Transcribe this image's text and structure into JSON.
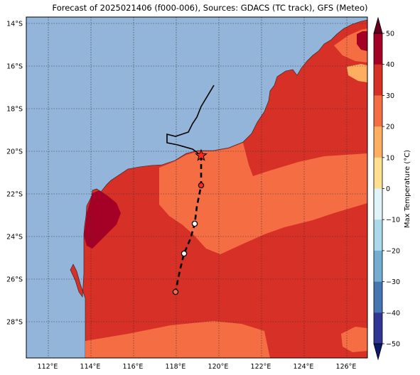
{
  "title": "Forecast of 2025021406 (f000-006), Sources: GDACS (TC track), GFS (Meteo)",
  "map": {
    "lon_range": [
      111,
      127
    ],
    "lat_range": [
      -29.7,
      -13.7
    ],
    "lon_ticks": [
      "112°E",
      "114°E",
      "116°E",
      "118°E",
      "120°E",
      "122°E",
      "124°E",
      "126°E"
    ],
    "lat_ticks": [
      "14°S",
      "16°S",
      "18°S",
      "20°S",
      "22°S",
      "24°S",
      "26°S",
      "28°S"
    ],
    "gridlines": true,
    "ocean_color": "#92b5d9"
  },
  "colorbar": {
    "label": "Max Temperature (°C)",
    "ticks": [
      "50",
      "40",
      "30",
      "20",
      "10",
      "0",
      "−10",
      "−20",
      "−30",
      "−40",
      "−50"
    ],
    "colors": [
      "#a50026",
      "#d73027",
      "#f46d43",
      "#fdae61",
      "#fee090",
      "#ffffff",
      "#e0f3f8",
      "#abd9e9",
      "#74add1",
      "#4575b4",
      "#313695"
    ]
  },
  "track": {
    "observed": [
      [
        119.8,
        -16.9
      ],
      [
        119.2,
        -17.9
      ],
      [
        119.0,
        -18.4
      ],
      [
        118.8,
        -18.7
      ],
      [
        118.6,
        -19.1
      ],
      [
        118.0,
        -19.3
      ],
      [
        117.6,
        -19.2
      ],
      [
        117.6,
        -19.6
      ],
      [
        118.1,
        -19.7
      ],
      [
        118.8,
        -19.9
      ],
      [
        119.2,
        -20.2
      ]
    ],
    "forecast": [
      [
        119.2,
        -20.2
      ],
      [
        119.2,
        -21.0
      ],
      [
        119.2,
        -21.6
      ],
      [
        119.0,
        -22.6
      ],
      [
        118.9,
        -23.4
      ],
      [
        118.7,
        -24.1
      ],
      [
        118.4,
        -24.8
      ],
      [
        118.2,
        -25.6
      ],
      [
        118.1,
        -26.1
      ],
      [
        118.0,
        -26.6
      ]
    ],
    "current_position": [
      119.2,
      -20.2
    ],
    "forecast_points": [
      [
        119.2,
        -21.6
      ],
      [
        118.9,
        -23.4
      ],
      [
        118.4,
        -24.8
      ],
      [
        118.0,
        -26.6
      ]
    ],
    "forecast_point_fills": [
      "#ff2a1a",
      "#ffffff",
      "#ffffff",
      "#f46d43"
    ]
  }
}
